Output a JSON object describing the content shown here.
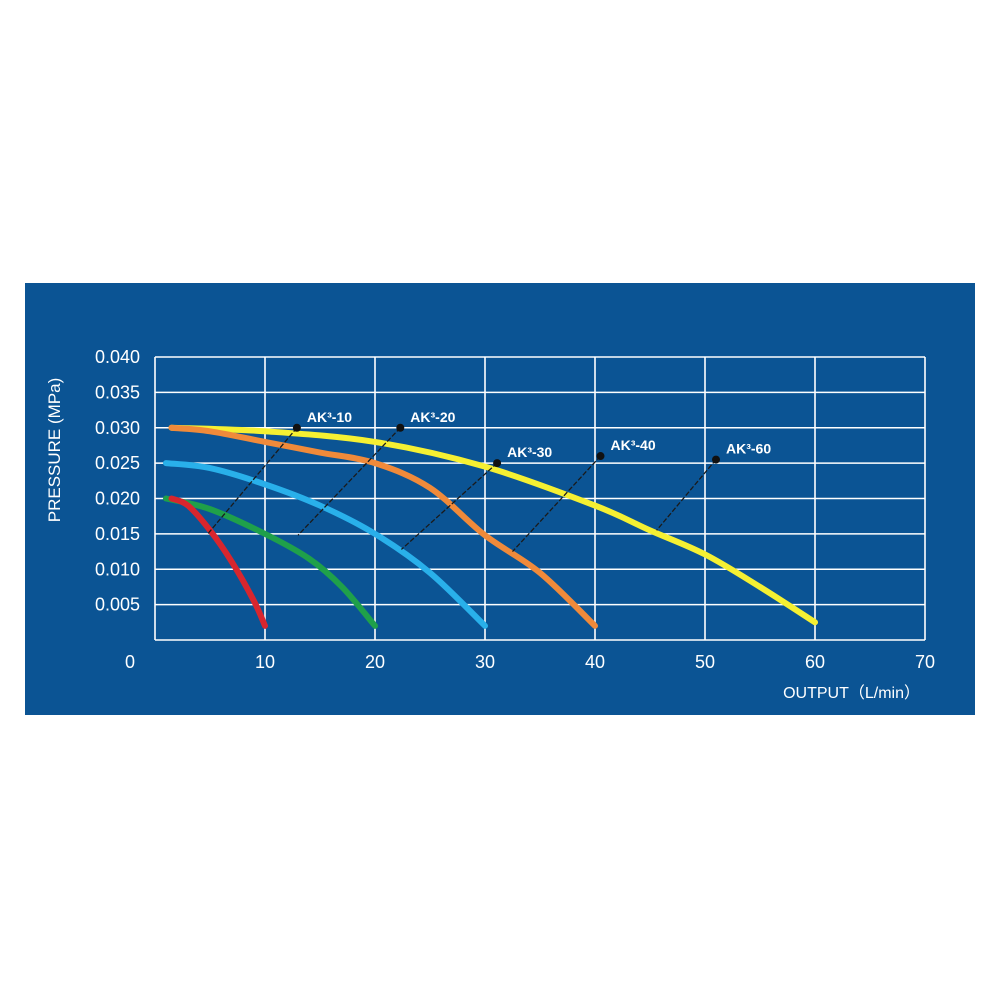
{
  "chart_data": {
    "type": "line",
    "xlabel": "OUTPUT（L/min）",
    "ylabel": "PRESSURE (MPa)",
    "xlim": [
      0,
      70
    ],
    "ylim": [
      0,
      0.04
    ],
    "x_ticks": [
      "0",
      "10",
      "20",
      "30",
      "40",
      "50",
      "60",
      "70"
    ],
    "y_ticks": [
      "0.005",
      "0.010",
      "0.015",
      "0.020",
      "0.025",
      "0.030",
      "0.035",
      "0.040"
    ],
    "grid": true,
    "background": "#0b5494",
    "series": [
      {
        "name": "AK³-10",
        "color": "#d8262e",
        "points": [
          [
            1.5,
            0.02
          ],
          [
            3,
            0.019
          ],
          [
            5,
            0.0155
          ],
          [
            7,
            0.011
          ],
          [
            9,
            0.0055
          ],
          [
            10,
            0.002
          ]
        ],
        "label_anchor": [
          12.9,
          0.03
        ],
        "leader_to": [
          4.8,
          0.015
        ]
      },
      {
        "name": "AK³-20",
        "color": "#1fa04a",
        "points": [
          [
            1,
            0.02
          ],
          [
            5,
            0.0185
          ],
          [
            10,
            0.015
          ],
          [
            14,
            0.0115
          ],
          [
            17,
            0.0075
          ],
          [
            20,
            0.002
          ]
        ],
        "label_anchor": [
          22.3,
          0.03
        ],
        "leader_to": [
          13,
          0.0148
        ]
      },
      {
        "name": "AK³-30",
        "color": "#29b0ea",
        "points": [
          [
            1,
            0.025
          ],
          [
            5,
            0.0243
          ],
          [
            10,
            0.022
          ],
          [
            15,
            0.019
          ],
          [
            20,
            0.015
          ],
          [
            25,
            0.0095
          ],
          [
            30,
            0.002
          ]
        ],
        "label_anchor": [
          31.1,
          0.025
        ],
        "leader_to": [
          22.4,
          0.0128
        ]
      },
      {
        "name": "AK³-40",
        "color": "#f08a3a",
        "points": [
          [
            1.5,
            0.03
          ],
          [
            5,
            0.0295
          ],
          [
            10,
            0.028
          ],
          [
            15,
            0.0265
          ],
          [
            20,
            0.025
          ],
          [
            25,
            0.0215
          ],
          [
            30,
            0.0148
          ],
          [
            35,
            0.0095
          ],
          [
            40,
            0.002
          ]
        ],
        "label_anchor": [
          40.5,
          0.026
        ],
        "leader_to": [
          32.5,
          0.0125
        ]
      },
      {
        "name": "AK³-60",
        "color": "#f5f032",
        "points": [
          [
            1.5,
            0.03
          ],
          [
            10,
            0.0295
          ],
          [
            20,
            0.028
          ],
          [
            30,
            0.0245
          ],
          [
            40,
            0.019
          ],
          [
            45,
            0.0155
          ],
          [
            50,
            0.0121
          ],
          [
            55,
            0.0075
          ],
          [
            60,
            0.0025
          ]
        ],
        "label_anchor": [
          51,
          0.0255
        ],
        "leader_to": [
          45.6,
          0.0155
        ]
      }
    ]
  }
}
